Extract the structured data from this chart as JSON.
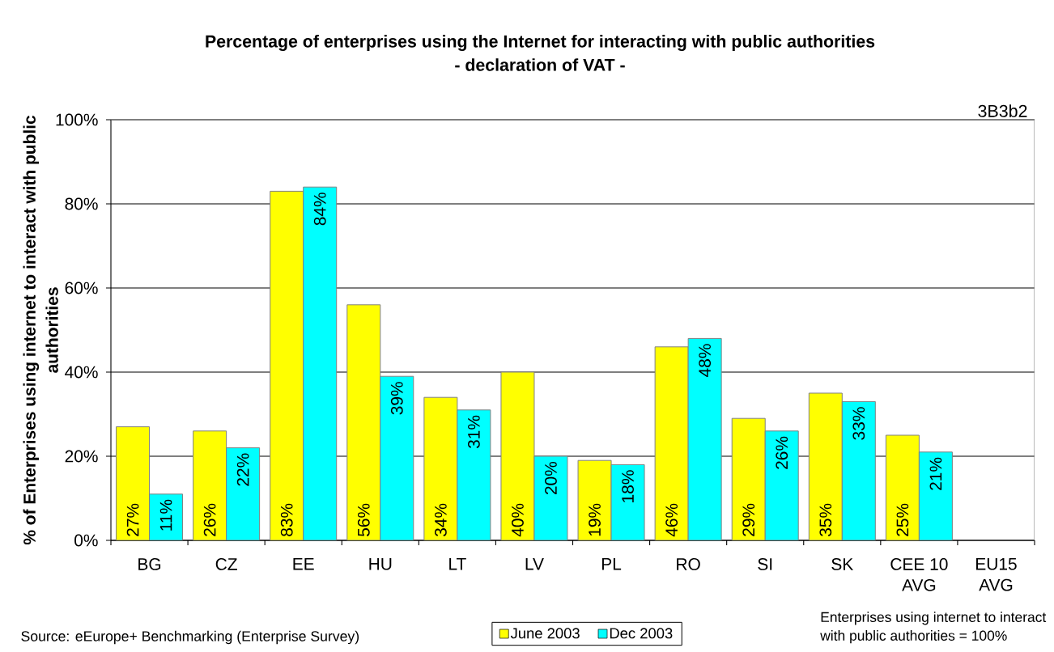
{
  "chart_data": {
    "type": "bar",
    "title": "Percentage of enterprises using the Internet for interacting with public authorities",
    "subtitle": "- declaration of VAT -",
    "ylabel": "% of Enterprises using internet to interact with public authorities",
    "categories": [
      "BG",
      "CZ",
      "EE",
      "HU",
      "LT",
      "LV",
      "PL",
      "RO",
      "SI",
      "SK",
      "CEE 10 AVG",
      "EU15 AVG"
    ],
    "series": [
      {
        "name": "June 2003",
        "color": "#ffff00",
        "values": [
          27,
          26,
          83,
          56,
          34,
          40,
          19,
          46,
          29,
          35,
          25,
          null
        ],
        "value_labels": [
          "27%",
          "26%",
          "83%",
          "56%",
          "34%",
          "40%",
          "19%",
          "46%",
          "29%",
          "35%",
          "25%",
          null
        ]
      },
      {
        "name": "Dec 2003",
        "color": "#00ffff",
        "values": [
          11,
          22,
          84,
          39,
          31,
          20,
          18,
          48,
          26,
          33,
          21,
          null
        ],
        "value_labels": [
          "11%",
          "22%",
          "84%",
          "39%",
          "31%",
          "20%",
          "18%",
          "48%",
          "26%",
          "33%",
          "21%",
          null
        ]
      }
    ],
    "ylim": [
      0,
      100
    ],
    "yticks": [
      {
        "value": 0,
        "label": "0%"
      },
      {
        "value": 20,
        "label": "20%"
      },
      {
        "value": 40,
        "label": "40%"
      },
      {
        "value": 60,
        "label": "60%"
      },
      {
        "value": 80,
        "label": "80%"
      },
      {
        "value": 100,
        "label": "100%"
      }
    ],
    "grid": "y",
    "legend": "bottom",
    "annotations": [
      "3B3b2",
      "Source: eEurope+ Benchmarking (Enterprise Survey)",
      "Enterprises using internet to interact with public authorities = 100%"
    ]
  }
}
